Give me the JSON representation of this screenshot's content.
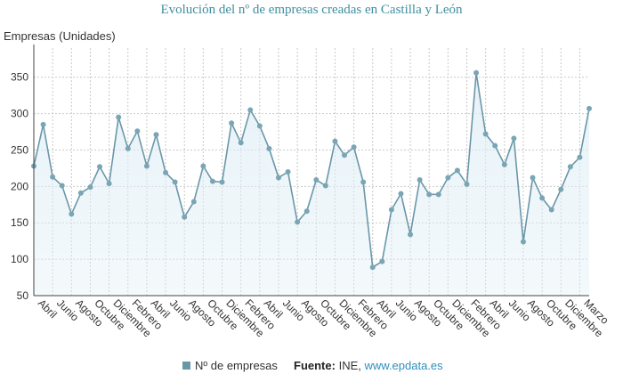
{
  "chart_data": {
    "type": "area",
    "title": "Evolución del nº de empresas creadas en Castilla y León",
    "ylabel": "Empresas (Unidades)",
    "xlabel": "",
    "ylim": [
      50,
      390
    ],
    "yticks": [
      50,
      100,
      150,
      200,
      250,
      300,
      350
    ],
    "grid": true,
    "colors": {
      "line": "#6a97a8",
      "marker": "#7aa5b5",
      "fill": "#dfeef5",
      "title": "#3f8fa0"
    },
    "tick_labels": [
      "Abril",
      "Junio",
      "Agosto",
      "Octubre",
      "Diciembre",
      "Febrero",
      "Abril",
      "Junio",
      "Agosto",
      "Octubre",
      "Diciembre",
      "Febrero",
      "Abril",
      "Junio",
      "Agosto",
      "Octubre",
      "Diciembre",
      "Febrero",
      "Abril",
      "Junio",
      "Agosto",
      "Octubre",
      "Diciembre",
      "Febrero",
      "Abril",
      "Junio",
      "Agosto",
      "Octubre",
      "Diciembre",
      "Marzo"
    ],
    "series": [
      {
        "name": "Nº de empresas",
        "values": [
          228,
          285,
          213,
          201,
          162,
          191,
          199,
          227,
          204,
          295,
          252,
          276,
          228,
          271,
          219,
          206,
          158,
          179,
          228,
          207,
          206,
          287,
          260,
          305,
          283,
          252,
          212,
          220,
          151,
          166,
          209,
          201,
          262,
          243,
          254,
          206,
          89,
          97,
          168,
          190,
          134,
          209,
          189,
          189,
          212,
          222,
          203,
          356,
          272,
          256,
          230,
          266,
          124,
          212,
          184,
          168,
          196,
          227,
          240,
          307
        ]
      }
    ]
  },
  "legend": {
    "label": "Nº de empresas"
  },
  "source": {
    "label": "Fuente:",
    "text": "INE,",
    "link": "www.epdata.es"
  }
}
